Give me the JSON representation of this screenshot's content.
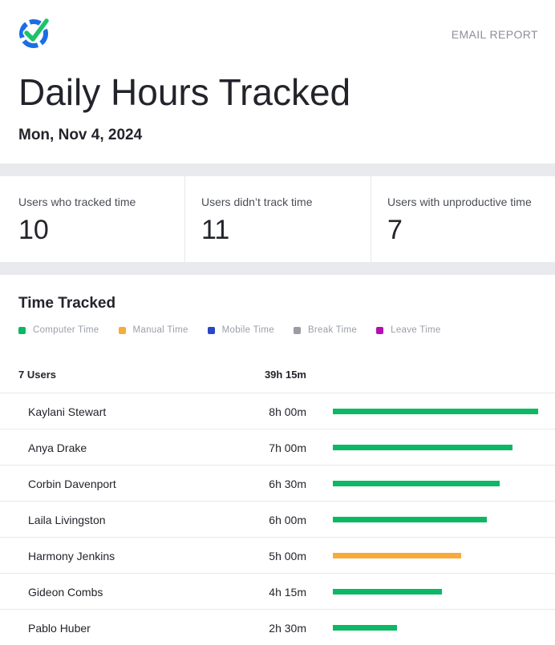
{
  "header": {
    "report_label": "EMAIL REPORT",
    "title": "Daily Hours Tracked",
    "date": "Mon, Nov 4, 2024",
    "logo_icon": "checkmark-shield-logo-icon",
    "logo_colors": {
      "ring": "#1a6ee6",
      "check": "#1ec26a"
    }
  },
  "stats": [
    {
      "label": "Users who tracked time",
      "value": "10"
    },
    {
      "label": "Users didn’t track time",
      "value": "11"
    },
    {
      "label": "Users with unproductive time",
      "value": "7"
    }
  ],
  "time_tracked": {
    "title": "Time Tracked",
    "legend": [
      {
        "label": "Computer Time",
        "color": "#0cb863"
      },
      {
        "label": "Manual Time",
        "color": "#f7ab3b"
      },
      {
        "label": "Mobile Time",
        "color": "#2a47c4"
      },
      {
        "label": "Break Time",
        "color": "#9a9ca5"
      },
      {
        "label": "Leave Time",
        "color": "#b40fb0"
      }
    ],
    "users_label": "7 Users",
    "total": "39h 15m",
    "users": [
      {
        "name": "Kaylani Stewart",
        "time": "8h 00m",
        "hours": 8.0,
        "type": "Computer Time"
      },
      {
        "name": "Anya Drake",
        "time": "7h 00m",
        "hours": 7.0,
        "type": "Computer Time"
      },
      {
        "name": "Corbin Davenport",
        "time": "6h 30m",
        "hours": 6.5,
        "type": "Computer Time"
      },
      {
        "name": "Laila Livingston",
        "time": "6h 00m",
        "hours": 6.0,
        "type": "Computer Time"
      },
      {
        "name": "Harmony Jenkins",
        "time": "5h 00m",
        "hours": 5.0,
        "type": "Manual Time"
      },
      {
        "name": "Gideon Combs",
        "time": "4h 15m",
        "hours": 4.25,
        "type": "Computer Time"
      },
      {
        "name": "Pablo Huber",
        "time": "2h 30m",
        "hours": 2.5,
        "type": "Computer Time"
      }
    ]
  }
}
